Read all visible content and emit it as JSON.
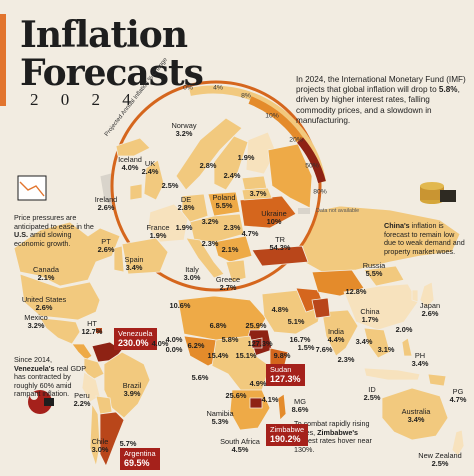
{
  "title": {
    "line1": "Inflation",
    "line2": "Forecasts",
    "year": "2 0 2 4"
  },
  "intro": {
    "part1": "In 2024, the International Monetary Fund (IMF) projects that global inflation will drop to ",
    "highlight": "5.8%",
    "part2": ", driven by higher interest rates, falling commodity prices, and a slowdown in manufacturing."
  },
  "scale": {
    "caption": "Projected Annual Inflation % Change",
    "ticks": [
      "0%",
      "4%",
      "8%",
      "10%",
      "20%",
      "50%",
      "80%"
    ],
    "not_available": "Data not available"
  },
  "notes": {
    "us": {
      "part1": "Price pressures are anticipated to ease in the ",
      "bold": "U.S.",
      "part2": " amid slowing economic growth."
    },
    "china": {
      "bold": "China's",
      "part2": " inflation is forecast to remain low due to weak demand and property market woes."
    },
    "venezuela": {
      "part1": "Since 2014, ",
      "bold": "Venezuela's",
      "part2": " real GDP has contracted by roughly 60% amid rampant inflation."
    },
    "zimbabwe": {
      "part1": "To combat rapidly rising prices, ",
      "bold": "Zimbabwe's",
      "part2": " interest rates hover near 130%."
    }
  },
  "colors": {
    "background": "#f2ece1",
    "ocean": "#f2ece1",
    "scale": [
      "#f7e2bd",
      "#f2c97e",
      "#eeaa47",
      "#e48b2b",
      "#d5661d",
      "#b9461a",
      "#8e2214"
    ],
    "no_data": "#d9d4cb",
    "highlight_box": "#a5211b",
    "accent": "#e2752e"
  },
  "countries": [
    {
      "name": "Iceland",
      "value": "4.0%"
    },
    {
      "name": "Norway",
      "value": "3.2%"
    },
    {
      "name": "UK",
      "value": "2.4%"
    },
    {
      "name": "Ireland",
      "value": "2.6%"
    },
    {
      "name": "DE",
      "value": "2.8%"
    },
    {
      "name": "Poland",
      "value": "5.5%"
    },
    {
      "name": "France",
      "value": "1.9%"
    },
    {
      "name": "PT",
      "value": "2.6%"
    },
    {
      "name": "Spain",
      "value": "3.4%"
    },
    {
      "name": "Italy",
      "value": "3.0%"
    },
    {
      "name": "Greece",
      "value": "2.7%"
    },
    {
      "name": "Ukraine",
      "value": "10%"
    },
    {
      "name": "TR",
      "value": "54.3%"
    },
    {
      "name": "Russia",
      "value": "5.5%"
    },
    {
      "name": "Canada",
      "value": "2.1%"
    },
    {
      "name": "United States",
      "value": "2.6%"
    },
    {
      "name": "Mexico",
      "value": "3.2%"
    },
    {
      "name": "HT",
      "value": "12.7%"
    },
    {
      "name": "Venezuela",
      "value": "230.0%"
    },
    {
      "name": "Peru",
      "value": "2.2%"
    },
    {
      "name": "Brazil",
      "value": "3.9%"
    },
    {
      "name": "Chile",
      "value": "3.0%"
    },
    {
      "name": "Argentina",
      "value": "69.5%"
    },
    {
      "name": "Sudan",
      "value": "127.3%"
    },
    {
      "name": "Namibia",
      "value": "5.3%"
    },
    {
      "name": "South Africa",
      "value": "4.5%"
    },
    {
      "name": "MG",
      "value": "8.6%"
    },
    {
      "name": "Zimbabwe",
      "value": "190.2%"
    },
    {
      "name": "India",
      "value": "4.4%"
    },
    {
      "name": "China",
      "value": "1.7%"
    },
    {
      "name": "Japan",
      "value": "2.6%"
    },
    {
      "name": "PH",
      "value": "3.4%"
    },
    {
      "name": "ID",
      "value": "2.5%"
    },
    {
      "name": "PG",
      "value": "4.7%"
    },
    {
      "name": "Australia",
      "value": "3.4%"
    },
    {
      "name": "New Zealand",
      "value": "2.5%"
    }
  ],
  "europe_values": [
    "2.8%",
    "1.9%",
    "3.7%",
    "3.2%",
    "2.3%",
    "4.7%",
    "2.5%",
    "1.9%",
    "2.1%",
    "2.3%",
    "2.4%"
  ],
  "unlabeled_values": [
    "10.6%",
    "12.8%",
    "6.8%",
    "25.9%",
    "127.3%",
    "15.4%",
    "15.1%",
    "16.7%",
    "9.8%",
    "5.6%",
    "4.0%",
    "0.0%",
    "1.5%",
    "25.6%",
    "4.9%",
    "3.4%",
    "7.6%",
    "3.1%",
    "4.8%",
    "5.7%",
    "5.1%",
    "4.1%",
    "5.8%",
    "2.3%",
    "4.0%",
    "6.2%",
    "2.0%"
  ]
}
